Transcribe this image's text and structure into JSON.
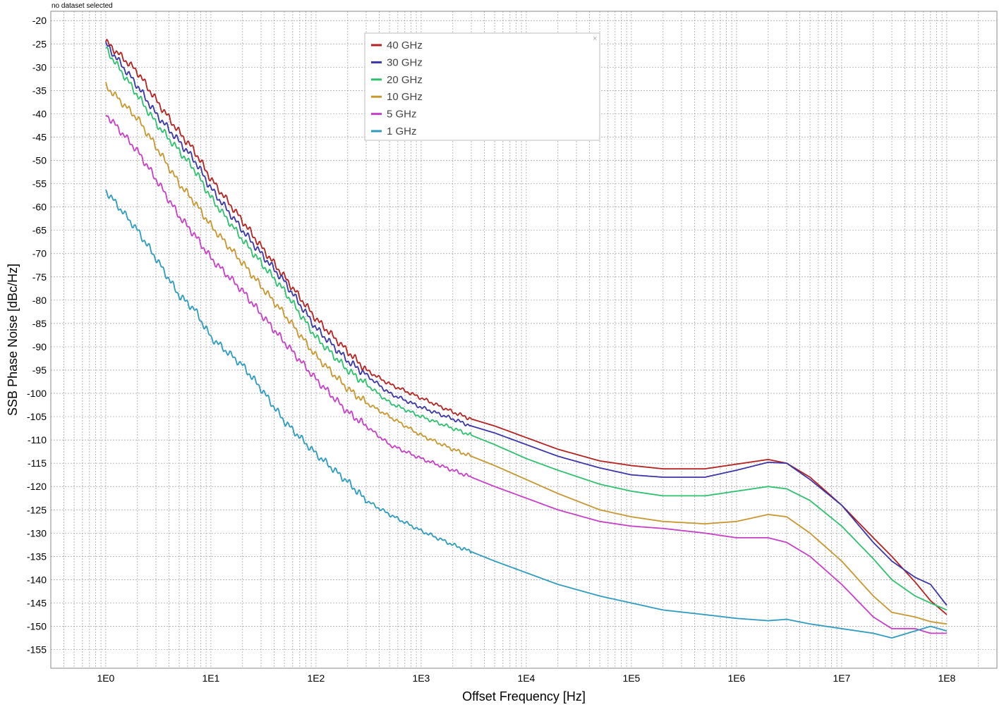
{
  "status_text": "no dataset selected",
  "legend": {
    "close_glyph": "×"
  },
  "chart_data": {
    "type": "line",
    "title": "",
    "xlabel": "Offset Frequency [Hz]",
    "ylabel": "SSB Phase Noise [dBc/Hz]",
    "x_scale": "log",
    "xlim": [
      0.3,
      300000000
    ],
    "ylim": [
      -159,
      -18
    ],
    "x_ticks": [
      1,
      10,
      100,
      1000,
      10000,
      100000,
      1000000,
      10000000,
      100000000
    ],
    "x_tick_labels": [
      "1E0",
      "1E1",
      "1E2",
      "1E3",
      "1E4",
      "1E5",
      "1E6",
      "1E7",
      "1E8"
    ],
    "y_ticks": [
      -20,
      -25,
      -30,
      -35,
      -40,
      -45,
      -50,
      -55,
      -60,
      -65,
      -70,
      -75,
      -80,
      -85,
      -90,
      -95,
      -100,
      -105,
      -110,
      -115,
      -120,
      -125,
      -130,
      -135,
      -140,
      -145,
      -150,
      -155
    ],
    "grid": true,
    "legend_position": "top-center",
    "series": [
      {
        "name": "40 GHz",
        "color": "#b5211e",
        "x": [
          1,
          2,
          3,
          5,
          7,
          10,
          20,
          30,
          50,
          100,
          200,
          300,
          500,
          1000,
          2000,
          3000,
          5000,
          10000,
          20000,
          50000,
          100000,
          200000,
          500000,
          1000000,
          2000000,
          3000000,
          5000000,
          10000000,
          20000000,
          30000000,
          50000000,
          70000000,
          100000000
        ],
        "y": [
          -24.5,
          -31,
          -37,
          -44,
          -48,
          -54,
          -63,
          -68.5,
          -75,
          -84,
          -91,
          -95,
          -98,
          -101,
          -104,
          -105.5,
          -107,
          -109.5,
          -112,
          -114.5,
          -115.5,
          -116.2,
          -116.2,
          -115.2,
          -114.2,
          -115,
          -118,
          -124,
          -131,
          -135,
          -140.5,
          -144.5,
          -147.5
        ]
      },
      {
        "name": "30 GHz",
        "color": "#3a35a8",
        "x": [
          1,
          2,
          3,
          5,
          7,
          10,
          20,
          30,
          50,
          100,
          200,
          300,
          500,
          1000,
          2000,
          3000,
          5000,
          10000,
          20000,
          50000,
          100000,
          200000,
          500000,
          1000000,
          2000000,
          3000000,
          5000000,
          10000000,
          20000000,
          30000000,
          50000000,
          70000000,
          100000000
        ],
        "y": [
          -25,
          -34,
          -40,
          -46,
          -50,
          -56,
          -65,
          -70,
          -76,
          -86,
          -93,
          -96,
          -100,
          -103,
          -105.5,
          -107,
          -108.5,
          -111,
          -113.5,
          -116,
          -117.5,
          -118,
          -118,
          -116.5,
          -114.8,
          -115,
          -118.5,
          -124,
          -132,
          -136,
          -139.5,
          -141,
          -145.5
        ]
      },
      {
        "name": "20 GHz",
        "color": "#2dc16d",
        "x": [
          1,
          2,
          3,
          5,
          7,
          10,
          20,
          30,
          50,
          100,
          200,
          300,
          500,
          1000,
          2000,
          3000,
          5000,
          10000,
          20000,
          50000,
          100000,
          200000,
          500000,
          1000000,
          2000000,
          3000000,
          5000000,
          10000000,
          20000000,
          30000000,
          50000000,
          70000000,
          100000000
        ],
        "y": [
          -26,
          -36,
          -42,
          -48,
          -52,
          -58,
          -67,
          -72,
          -78,
          -88,
          -95,
          -98,
          -102,
          -105,
          -107.5,
          -109,
          -111,
          -114,
          -116.5,
          -119.5,
          -121,
          -122,
          -122,
          -121,
          -120,
          -120.5,
          -123,
          -128.5,
          -135.5,
          -140,
          -143.5,
          -145,
          -146.5
        ]
      },
      {
        "name": "10 GHz",
        "color": "#c8962e",
        "x": [
          1,
          2,
          3,
          5,
          7,
          10,
          20,
          30,
          50,
          100,
          200,
          300,
          500,
          1000,
          2000,
          3000,
          5000,
          10000,
          20000,
          50000,
          100000,
          200000,
          500000,
          1000000,
          2000000,
          3000000,
          5000000,
          10000000,
          20000000,
          30000000,
          50000000,
          70000000,
          100000000
        ],
        "y": [
          -34,
          -41,
          -47,
          -55,
          -59,
          -64,
          -72,
          -77,
          -83,
          -92,
          -99,
          -102,
          -105,
          -109,
          -112,
          -113.5,
          -115.5,
          -118.5,
          -121.5,
          -125,
          -126.5,
          -127.5,
          -128,
          -127.5,
          -126,
          -126.5,
          -130,
          -136,
          -143.5,
          -147,
          -148,
          -149,
          -149.5
        ]
      },
      {
        "name": "5 GHz",
        "color": "#c73ec7",
        "x": [
          1,
          2,
          3,
          5,
          7,
          10,
          20,
          30,
          50,
          100,
          200,
          300,
          500,
          1000,
          2000,
          3000,
          5000,
          10000,
          20000,
          50000,
          100000,
          200000,
          500000,
          1000000,
          2000000,
          3000000,
          5000000,
          10000000,
          20000000,
          30000000,
          50000000,
          70000000,
          100000000
        ],
        "y": [
          -40,
          -48,
          -54,
          -62,
          -66,
          -71,
          -78,
          -83,
          -89,
          -97,
          -104,
          -107,
          -111,
          -114,
          -116.5,
          -118,
          -120,
          -122.5,
          -125,
          -127.5,
          -128.5,
          -129,
          -130,
          -131,
          -131,
          -132,
          -135,
          -141,
          -148,
          -150.5,
          -150.5,
          -151.5,
          -151.5
        ]
      },
      {
        "name": "1 GHz",
        "color": "#2d9bbf",
        "x": [
          1,
          2,
          3,
          5,
          7,
          10,
          20,
          30,
          50,
          100,
          200,
          300,
          500,
          1000,
          2000,
          3000,
          5000,
          10000,
          20000,
          50000,
          100000,
          200000,
          500000,
          1000000,
          2000000,
          3000000,
          5000000,
          10000000,
          20000000,
          30000000,
          50000000,
          70000000,
          100000000
        ],
        "y": [
          -56.5,
          -65,
          -71,
          -79,
          -82,
          -88,
          -94,
          -99,
          -106,
          -113,
          -119,
          -123,
          -126,
          -129.5,
          -132.5,
          -134,
          -136,
          -138.5,
          -141,
          -143.5,
          -145,
          -146.5,
          -147.5,
          -148.3,
          -148.8,
          -148.5,
          -149.5,
          -150.5,
          -151.5,
          -152.5,
          -151,
          -150,
          -151
        ]
      }
    ]
  }
}
